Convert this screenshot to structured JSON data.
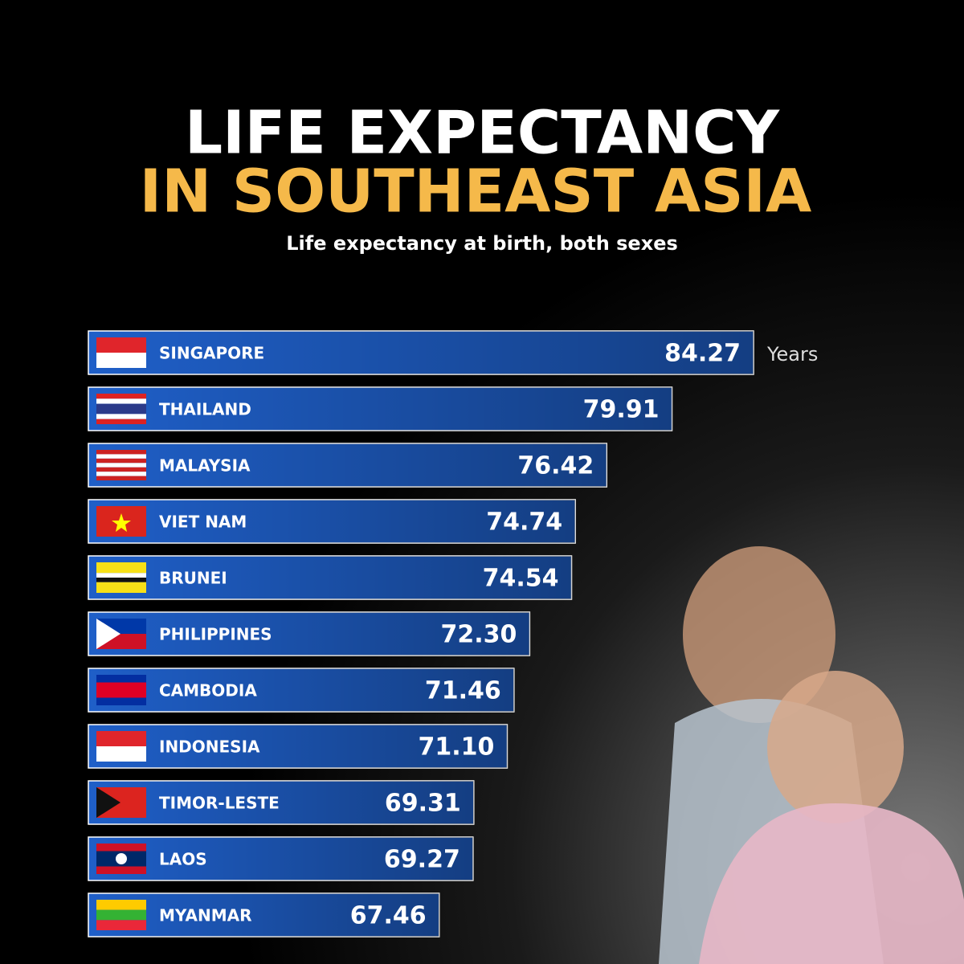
{
  "chart_data": {
    "type": "hbar",
    "title_lines": [
      "LIFE EXPECTANCY",
      "IN SOUTHEAST ASIA"
    ],
    "subtitle": "Life expectancy at birth, both sexes",
    "unit_label": "Years",
    "categories": [
      "SINGAPORE",
      "THAILAND",
      "MALAYSIA",
      "VIET NAM",
      "BRUNEI",
      "PHILIPPINES",
      "CAMBODIA",
      "INDONESIA",
      "TIMOR-LESTE",
      "LAOS",
      "MYANMAR"
    ],
    "values": [
      84.27,
      79.91,
      76.42,
      74.74,
      74.54,
      72.3,
      71.46,
      71.1,
      69.31,
      69.27,
      67.46
    ],
    "value_labels": [
      "84.27",
      "79.91",
      "76.42",
      "74.74",
      "74.54",
      "72.30",
      "71.46",
      "71.10",
      "69.31",
      "69.27",
      "67.46"
    ],
    "color": "#1f5fc8",
    "xlim": [
      48.7,
      84.27
    ]
  }
}
